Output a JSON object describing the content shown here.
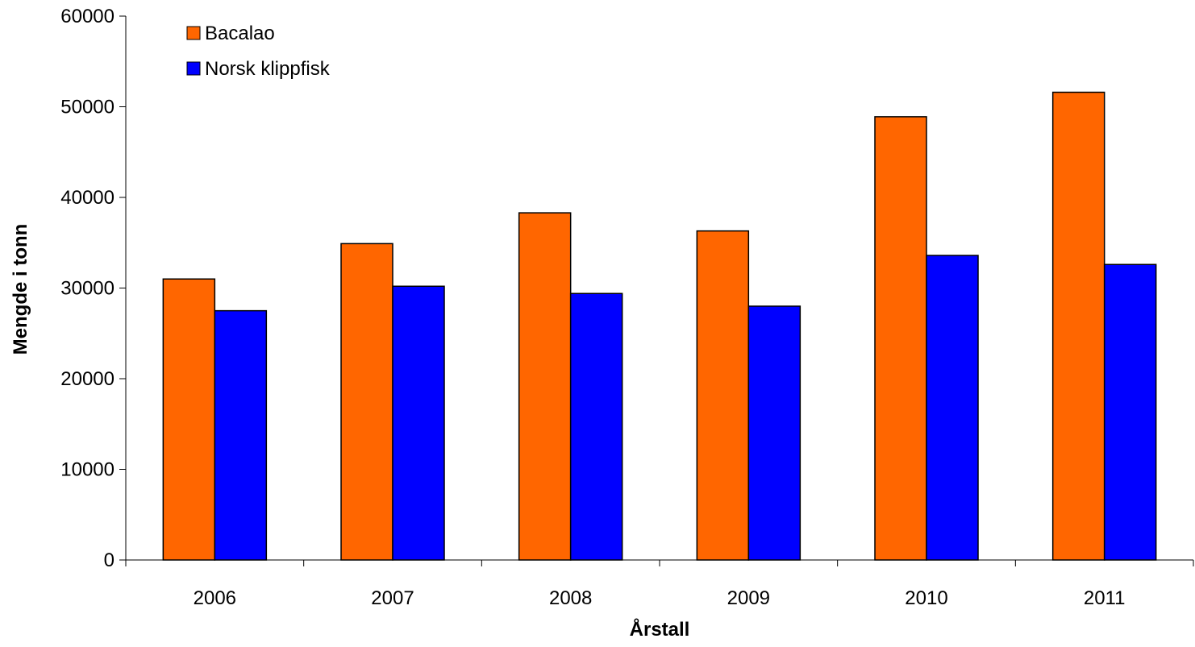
{
  "chart_data": {
    "type": "bar",
    "title": "",
    "xlabel": "Årstall",
    "ylabel": "Mengde i tonn",
    "categories": [
      "2006",
      "2007",
      "2008",
      "2009",
      "2010",
      "2011"
    ],
    "series": [
      {
        "name": "Bacalao",
        "color": "#ff6600",
        "values": [
          31000,
          34900,
          38300,
          36300,
          48900,
          51600
        ]
      },
      {
        "name": "Norsk klippfisk",
        "color": "#0000ff",
        "values": [
          27500,
          30200,
          29400,
          28000,
          33600,
          32600
        ]
      }
    ],
    "ylim": [
      0,
      60000
    ],
    "yticks": [
      "0",
      "10000",
      "20000",
      "30000",
      "40000",
      "50000",
      "60000"
    ],
    "grid": false,
    "legend_position": "top-left"
  }
}
